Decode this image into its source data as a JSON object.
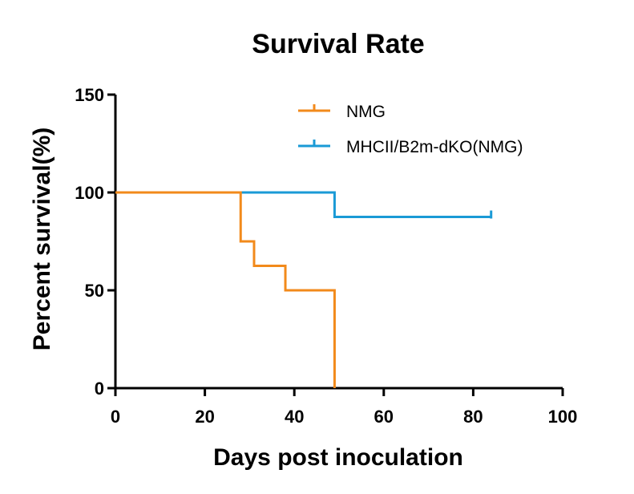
{
  "chart_data": {
    "type": "line",
    "step": true,
    "title": "Survival Rate",
    "xlabel": "Days post inoculation",
    "ylabel": "Percent survival(%)",
    "xlim": [
      0,
      100
    ],
    "ylim": [
      0,
      150
    ],
    "xticks": [
      0,
      20,
      40,
      60,
      80,
      100
    ],
    "yticks": [
      0,
      50,
      100,
      150
    ],
    "grid": false,
    "legend_position": "top-right",
    "series": [
      {
        "name": "NMG",
        "color": "#F28A1B",
        "x": [
          0,
          28,
          31,
          38,
          49
        ],
        "y": [
          100,
          75,
          62.5,
          50,
          0
        ],
        "censored": []
      },
      {
        "name": "MHCII/B2m-dKO(NMG)",
        "color": "#1A9AD6",
        "x": [
          0,
          49,
          84
        ],
        "y": [
          100,
          87.5,
          87.5
        ],
        "censored": [
          [
            84,
            87.5
          ]
        ]
      }
    ]
  }
}
